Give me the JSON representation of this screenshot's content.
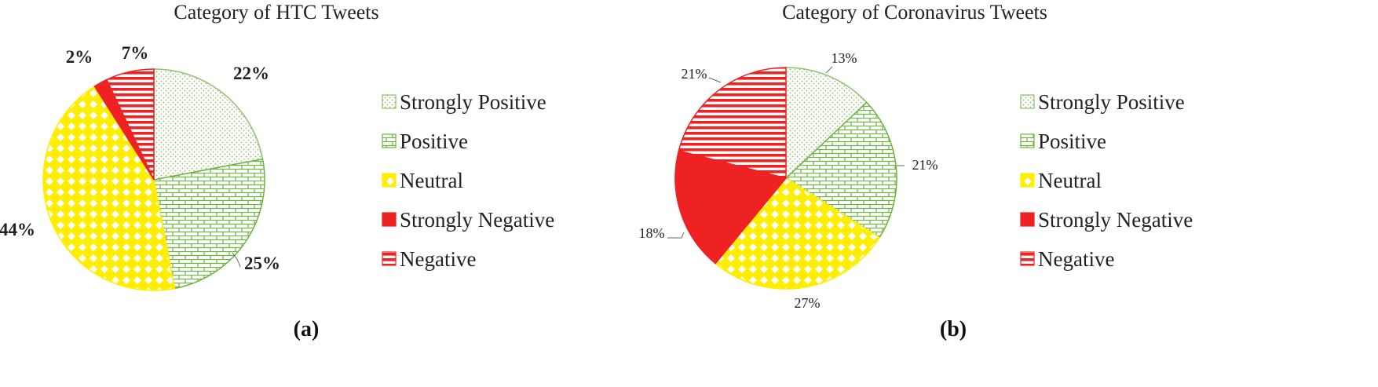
{
  "chart_data": [
    {
      "type": "pie",
      "title": "Category of HTC Tweets",
      "panel_label": "(a)",
      "slices": [
        {
          "label": "Strongly Positive",
          "value": 22,
          "value_label": "22%",
          "color": "#8fc06a",
          "pattern": "dots"
        },
        {
          "label": "Positive",
          "value": 25,
          "value_label": "25%",
          "color": "#6db33f",
          "pattern": "bricks"
        },
        {
          "label": "Neutral",
          "value": 44,
          "value_label": "44%",
          "color": "#ffee00",
          "pattern": "diamonds"
        },
        {
          "label": "Strongly Negative",
          "value": 2,
          "value_label": "2%",
          "color": "#ee2222",
          "pattern": "solid"
        },
        {
          "label": "Negative",
          "value": 7,
          "value_label": "7%",
          "color": "#ee2222",
          "pattern": "hstripes"
        }
      ],
      "legend": [
        "Strongly Positive",
        "Positive",
        "Neutral",
        "Strongly Negative",
        "Negative"
      ],
      "legend_position": "right"
    },
    {
      "type": "pie",
      "title": "Category of Coronavirus Tweets",
      "panel_label": "(b)",
      "slices": [
        {
          "label": "Strongly Positive",
          "value": 13,
          "value_label": "13%",
          "color": "#8fc06a",
          "pattern": "dots"
        },
        {
          "label": "Positive",
          "value": 21,
          "value_label": "21%",
          "color": "#6db33f",
          "pattern": "bricks"
        },
        {
          "label": "Neutral",
          "value": 27,
          "value_label": "27%",
          "color": "#ffee00",
          "pattern": "diamonds"
        },
        {
          "label": "Strongly Negative",
          "value": 18,
          "value_label": "18%",
          "color": "#ee2222",
          "pattern": "solid"
        },
        {
          "label": "Negative",
          "value": 21,
          "value_label": "21%",
          "color": "#ee2222",
          "pattern": "hstripes"
        }
      ],
      "legend": [
        "Strongly Positive",
        "Positive",
        "Neutral",
        "Strongly Negative",
        "Negative"
      ],
      "legend_position": "right"
    }
  ]
}
